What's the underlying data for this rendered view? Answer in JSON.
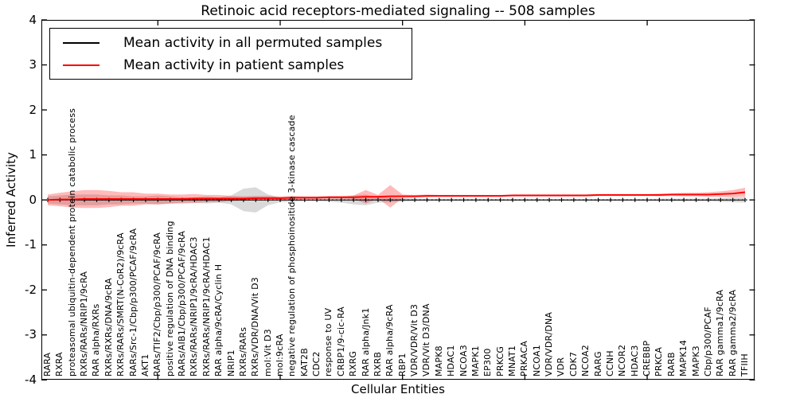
{
  "title": "Retinoic acid receptors-mediated signaling -- 508 samples",
  "axes": {
    "xlabel": "Cellular Entities",
    "ylabel": "Inferred Activity",
    "ytick_labels": [
      "4",
      "3",
      "2",
      "1",
      "0",
      "-1",
      "-2",
      "-3",
      "-4"
    ],
    "ylim": [
      -4,
      4
    ]
  },
  "legend": {
    "items": [
      {
        "label": "Mean activity in all permuted samples",
        "color": "#000000"
      },
      {
        "label": "Mean activity in patient samples",
        "color": "#ff0000"
      }
    ]
  },
  "chart_data": {
    "type": "line",
    "title": "Retinoic acid receptors-mediated signaling -- 508 samples",
    "xlabel": "Cellular Entities",
    "ylabel": "Inferred Activity",
    "ylim": [
      -4,
      4
    ],
    "grid": false,
    "legend_position": "upper left",
    "zero_line": "black dotted with per-category tick markers",
    "major_xtick_positions": [
      10,
      20,
      30,
      40,
      50
    ],
    "categories": [
      "RARA",
      "RXRA",
      "proteasomal ubiquitin-dependent protein catabolic process",
      "RXRs/RARs/NRIP1/9cRA",
      "RAR alpha/RXRs",
      "RXRs/RXRs/DNA/9cRA",
      "RXRs/RARs/SMRT(N-CoR2)/9cRA",
      "RARs/Src-1/Cbp/p300/PCAF/9cRA",
      "AKT1",
      "RARs/TIF2/Cbp/p300/PCAF/9cRA",
      "positive regulation of DNA binding",
      "RARs/AIB1/Cbp/p300/PCAF/9cRA",
      "RXRs/RARs/NRIP1/9cRA/HDAC3",
      "RXRs/RARs/NRIP1/9cRA/HDAC1",
      "RAR alpha/9cRA/Cyclin H",
      "NRIP1",
      "RXRs/RARs",
      "RXRs/VDR/DNA/Vit D3",
      "mol:Vit D3",
      "mol:9cRA",
      "negative regulation of phosphoinositide 3-kinase cascade",
      "KAT2B",
      "CDC2",
      "response to UV",
      "CRBP1/9-cic-RA",
      "RXRG",
      "RAR alpha/Jnk1",
      "RXRB",
      "RAR alpha/9cRA",
      "RBP1",
      "VDR/VDR/Vit D3",
      "VDR/Vit D3/DNA",
      "MAPK8",
      "HDAC1",
      "NCOA3",
      "MAPK1",
      "EP300",
      "PRKCG",
      "MNAT1",
      "PRKACA",
      "NCOA1",
      "VDR/VDR/DNA",
      "VDR",
      "CDK7",
      "NCOA2",
      "RARG",
      "CCNH",
      "NCOR2",
      "HDAC3",
      "CREBBP",
      "PRKCA",
      "RARB",
      "MAPK14",
      "MAPK3",
      "Cbp/p300/PCAF",
      "RAR gamma1/9cRA",
      "RAR gamma2/9cRA",
      "TFIIH"
    ],
    "series": [
      {
        "name": "Mean activity in all permuted samples",
        "color": "#000000",
        "band_color": "rgba(128,128,128,0.30)",
        "style": "dotted_with_tick_markers",
        "values": [
          0,
          0,
          0,
          0,
          0,
          0,
          0,
          0,
          0,
          0,
          0,
          0,
          0,
          0,
          0,
          0,
          0,
          0,
          0,
          0,
          0,
          0,
          0,
          0,
          0,
          0,
          0,
          0,
          0,
          0,
          0,
          0,
          0,
          0,
          0,
          0,
          0,
          0,
          0,
          0,
          0,
          0,
          0,
          0,
          0,
          0,
          0,
          0,
          0,
          0,
          0,
          0,
          0,
          0,
          0,
          0,
          0,
          0
        ],
        "band_halfwidth": [
          0.08,
          0.1,
          0.12,
          0.12,
          0.12,
          0.1,
          0.1,
          0.08,
          0.08,
          0.1,
          0.08,
          0.06,
          0.06,
          0.08,
          0.06,
          0.1,
          0.25,
          0.28,
          0.12,
          0.05,
          0.04,
          0.03,
          0.03,
          0.04,
          0.06,
          0.1,
          0.12,
          0.06,
          0.05,
          0.04,
          0.03,
          0.02,
          0.02,
          0.02,
          0.02,
          0.02,
          0.02,
          0.02,
          0.02,
          0.02,
          0.02,
          0.02,
          0.02,
          0.02,
          0.02,
          0.02,
          0.02,
          0.02,
          0.02,
          0.02,
          0.03,
          0.03,
          0.03,
          0.03,
          0.03,
          0.04,
          0.05,
          0.06
        ]
      },
      {
        "name": "Mean activity in patient samples",
        "color": "#ff0000",
        "band_color": "rgba(255,0,0,0.27)",
        "style": "solid",
        "values": [
          0.0,
          0.01,
          0.01,
          0.02,
          0.02,
          0.02,
          0.02,
          0.02,
          0.02,
          0.02,
          0.02,
          0.02,
          0.03,
          0.03,
          0.03,
          0.03,
          0.03,
          0.04,
          0.04,
          0.04,
          0.05,
          0.05,
          0.05,
          0.06,
          0.06,
          0.06,
          0.07,
          0.07,
          0.08,
          0.08,
          0.08,
          0.09,
          0.09,
          0.09,
          0.09,
          0.09,
          0.09,
          0.09,
          0.1,
          0.1,
          0.1,
          0.1,
          0.1,
          0.1,
          0.1,
          0.11,
          0.11,
          0.11,
          0.11,
          0.11,
          0.11,
          0.12,
          0.12,
          0.12,
          0.12,
          0.13,
          0.14,
          0.17
        ],
        "band_halfwidth": [
          0.12,
          0.15,
          0.18,
          0.2,
          0.2,
          0.18,
          0.15,
          0.15,
          0.12,
          0.12,
          0.1,
          0.1,
          0.1,
          0.08,
          0.08,
          0.06,
          0.05,
          0.05,
          0.05,
          0.04,
          0.04,
          0.03,
          0.03,
          0.03,
          0.03,
          0.04,
          0.15,
          0.04,
          0.25,
          0.04,
          0.03,
          0.03,
          0.02,
          0.02,
          0.02,
          0.02,
          0.02,
          0.02,
          0.02,
          0.02,
          0.02,
          0.02,
          0.02,
          0.02,
          0.02,
          0.02,
          0.02,
          0.02,
          0.02,
          0.02,
          0.03,
          0.03,
          0.04,
          0.04,
          0.05,
          0.06,
          0.08,
          0.1
        ]
      }
    ]
  }
}
